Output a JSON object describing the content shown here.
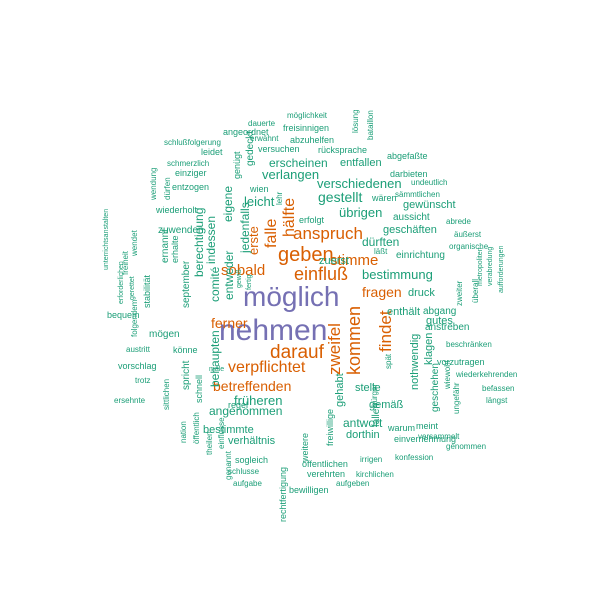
{
  "colors": {
    "purple": "#7570b3",
    "orange": "#d95f02",
    "teal": "#1b9e77"
  },
  "words": [
    {
      "text": "möglich",
      "color": "purple"
    },
    {
      "text": "nehmen",
      "color": "purple"
    },
    {
      "text": "geben",
      "color": "orange"
    },
    {
      "text": "darauf",
      "color": "orange"
    },
    {
      "text": "einfluß",
      "color": "orange"
    },
    {
      "text": "verpflichtet",
      "color": "orange"
    },
    {
      "text": "anspruch",
      "color": "orange"
    },
    {
      "text": "kommen",
      "color": "orange"
    },
    {
      "text": "zweifel",
      "color": "orange"
    },
    {
      "text": "findet",
      "color": "orange"
    },
    {
      "text": "hälfte",
      "color": "orange"
    },
    {
      "text": "falle",
      "color": "orange"
    },
    {
      "text": "sobald",
      "color": "orange"
    },
    {
      "text": "stimme",
      "color": "orange"
    },
    {
      "text": "ferner",
      "color": "orange"
    },
    {
      "text": "betreffenden",
      "color": "orange"
    },
    {
      "text": "erste",
      "color": "orange"
    },
    {
      "text": "fragen",
      "color": "orange"
    },
    {
      "text": "gestellt",
      "color": "teal"
    },
    {
      "text": "verschiedenen",
      "color": "teal"
    },
    {
      "text": "übrigen",
      "color": "teal"
    },
    {
      "text": "dürften",
      "color": "teal"
    },
    {
      "text": "bestimmung",
      "color": "teal"
    },
    {
      "text": "verlangen",
      "color": "teal"
    },
    {
      "text": "erscheinen",
      "color": "teal"
    },
    {
      "text": "entfallen",
      "color": "teal"
    },
    {
      "text": "leicht",
      "color": "teal"
    },
    {
      "text": "jedenfalls",
      "color": "teal"
    },
    {
      "text": "eigene",
      "color": "teal"
    },
    {
      "text": "entweder",
      "color": "teal"
    },
    {
      "text": "comité",
      "color": "teal"
    },
    {
      "text": "indessen",
      "color": "teal"
    },
    {
      "text": "berechtigung",
      "color": "teal"
    },
    {
      "text": "früheren",
      "color": "teal"
    },
    {
      "text": "angenommen",
      "color": "teal"
    },
    {
      "text": "behaupten",
      "color": "teal"
    },
    {
      "text": "bestimmte",
      "color": "teal"
    },
    {
      "text": "verhältnis",
      "color": "teal"
    },
    {
      "text": "antwort",
      "color": "teal"
    },
    {
      "text": "dorthin",
      "color": "teal"
    },
    {
      "text": "stelle",
      "color": "teal"
    },
    {
      "text": "gemäß",
      "color": "teal"
    },
    {
      "text": "gehabt",
      "color": "teal"
    },
    {
      "text": "nothwendig",
      "color": "teal"
    },
    {
      "text": "enthält",
      "color": "teal"
    },
    {
      "text": "druck",
      "color": "teal"
    },
    {
      "text": "abgang",
      "color": "teal"
    },
    {
      "text": "gutes",
      "color": "teal"
    },
    {
      "text": "klagen",
      "color": "teal"
    },
    {
      "text": "anstreben",
      "color": "teal"
    },
    {
      "text": "geschäften",
      "color": "teal"
    },
    {
      "text": "gewünscht",
      "color": "teal"
    },
    {
      "text": "einrichtung",
      "color": "teal"
    },
    {
      "text": "aussicht",
      "color": "teal"
    },
    {
      "text": "zuerst",
      "color": "teal"
    },
    {
      "text": "erfolgt",
      "color": "teal"
    },
    {
      "text": "möglichkeit",
      "color": "teal"
    },
    {
      "text": "dauerte",
      "color": "teal"
    },
    {
      "text": "freisinnigen",
      "color": "teal"
    },
    {
      "text": "angeordnet",
      "color": "teal"
    },
    {
      "text": "erwähnt",
      "color": "teal"
    },
    {
      "text": "abzuhelfen",
      "color": "teal"
    },
    {
      "text": "lösung",
      "color": "teal"
    },
    {
      "text": "bataillon",
      "color": "teal"
    },
    {
      "text": "schlußfolgerung",
      "color": "teal"
    },
    {
      "text": "leidet",
      "color": "teal"
    },
    {
      "text": "versuchen",
      "color": "teal"
    },
    {
      "text": "rücksprache",
      "color": "teal"
    },
    {
      "text": "abgefaßte",
      "color": "teal"
    },
    {
      "text": "gedeckt",
      "color": "teal"
    },
    {
      "text": "schmerzlich",
      "color": "teal"
    },
    {
      "text": "einziger",
      "color": "teal"
    },
    {
      "text": "entzogen",
      "color": "teal"
    },
    {
      "text": "genügt",
      "color": "teal"
    },
    {
      "text": "darbieten",
      "color": "teal"
    },
    {
      "text": "undeutlich",
      "color": "teal"
    },
    {
      "text": "wären",
      "color": "teal"
    },
    {
      "text": "sämmtlichen",
      "color": "teal"
    },
    {
      "text": "wien",
      "color": "teal"
    },
    {
      "text": "lehr",
      "color": "teal"
    },
    {
      "text": "wendung",
      "color": "teal"
    },
    {
      "text": "dürfen",
      "color": "teal"
    },
    {
      "text": "wiederholt",
      "color": "teal"
    },
    {
      "text": "abrede",
      "color": "teal"
    },
    {
      "text": "äußerst",
      "color": "teal"
    },
    {
      "text": "organische",
      "color": "teal"
    },
    {
      "text": "läßt",
      "color": "teal"
    },
    {
      "text": "zuwenden",
      "color": "teal"
    },
    {
      "text": "unterrichtsanstalten",
      "color": "teal"
    },
    {
      "text": "freiheit",
      "color": "teal"
    },
    {
      "text": "wendet",
      "color": "teal"
    },
    {
      "text": "ernannt",
      "color": "teal"
    },
    {
      "text": "erhalte",
      "color": "teal"
    },
    {
      "text": "metropoliten",
      "color": "teal"
    },
    {
      "text": "verabredung",
      "color": "teal"
    },
    {
      "text": "aufforderungen",
      "color": "teal"
    },
    {
      "text": "erforderlichen",
      "color": "teal"
    },
    {
      "text": "gerettet",
      "color": "teal"
    },
    {
      "text": "folgendem",
      "color": "teal"
    },
    {
      "text": "stabilität",
      "color": "teal"
    },
    {
      "text": "september",
      "color": "teal"
    },
    {
      "text": "gewiß",
      "color": "teal"
    },
    {
      "text": "fertig",
      "color": "teal"
    },
    {
      "text": "zweiter",
      "color": "teal"
    },
    {
      "text": "überall",
      "color": "teal"
    },
    {
      "text": "bequem",
      "color": "teal"
    },
    {
      "text": "mögen",
      "color": "teal"
    },
    {
      "text": "beschränken",
      "color": "teal"
    },
    {
      "text": "austritt",
      "color": "teal"
    },
    {
      "text": "könne",
      "color": "teal"
    },
    {
      "text": "vorzutragen",
      "color": "teal"
    },
    {
      "text": "vorschlag",
      "color": "teal"
    },
    {
      "text": "male",
      "color": "teal"
    },
    {
      "text": "spät",
      "color": "teal"
    },
    {
      "text": "wiewohl",
      "color": "teal"
    },
    {
      "text": "wiederkehrenden",
      "color": "teal"
    },
    {
      "text": "trotz",
      "color": "teal"
    },
    {
      "text": "spricht",
      "color": "teal"
    },
    {
      "text": "befassen",
      "color": "teal"
    },
    {
      "text": "längst",
      "color": "teal"
    },
    {
      "text": "ersehnte",
      "color": "teal"
    },
    {
      "text": "sittlichen",
      "color": "teal"
    },
    {
      "text": "schnell",
      "color": "teal"
    },
    {
      "text": "regel",
      "color": "teal"
    },
    {
      "text": "bürger",
      "color": "teal"
    },
    {
      "text": "fallen",
      "color": "teal"
    },
    {
      "text": "ungefähr",
      "color": "teal"
    },
    {
      "text": "geschehen",
      "color": "teal"
    },
    {
      "text": "meint",
      "color": "teal"
    },
    {
      "text": "einvernehmung",
      "color": "teal"
    },
    {
      "text": "versammelt",
      "color": "teal"
    },
    {
      "text": "genommen",
      "color": "teal"
    },
    {
      "text": "nation",
      "color": "teal"
    },
    {
      "text": "öffentlich",
      "color": "teal"
    },
    {
      "text": "theilen",
      "color": "teal"
    },
    {
      "text": "einflusse",
      "color": "teal"
    },
    {
      "text": "freiwillige",
      "color": "teal"
    },
    {
      "text": "genannt",
      "color": "teal"
    },
    {
      "text": "sogleich",
      "color": "teal"
    },
    {
      "text": "weitere",
      "color": "teal"
    },
    {
      "text": "warum",
      "color": "teal"
    },
    {
      "text": "konfession",
      "color": "teal"
    },
    {
      "text": "irrigen",
      "color": "teal"
    },
    {
      "text": "öffentlichen",
      "color": "teal"
    },
    {
      "text": "schlusse",
      "color": "teal"
    },
    {
      "text": "kirchlichen",
      "color": "teal"
    },
    {
      "text": "verehrten",
      "color": "teal"
    },
    {
      "text": "aufgabe",
      "color": "teal"
    },
    {
      "text": "aufgeben",
      "color": "teal"
    },
    {
      "text": "bewilligen",
      "color": "teal"
    },
    {
      "text": "rechtfertigung",
      "color": "teal"
    }
  ]
}
